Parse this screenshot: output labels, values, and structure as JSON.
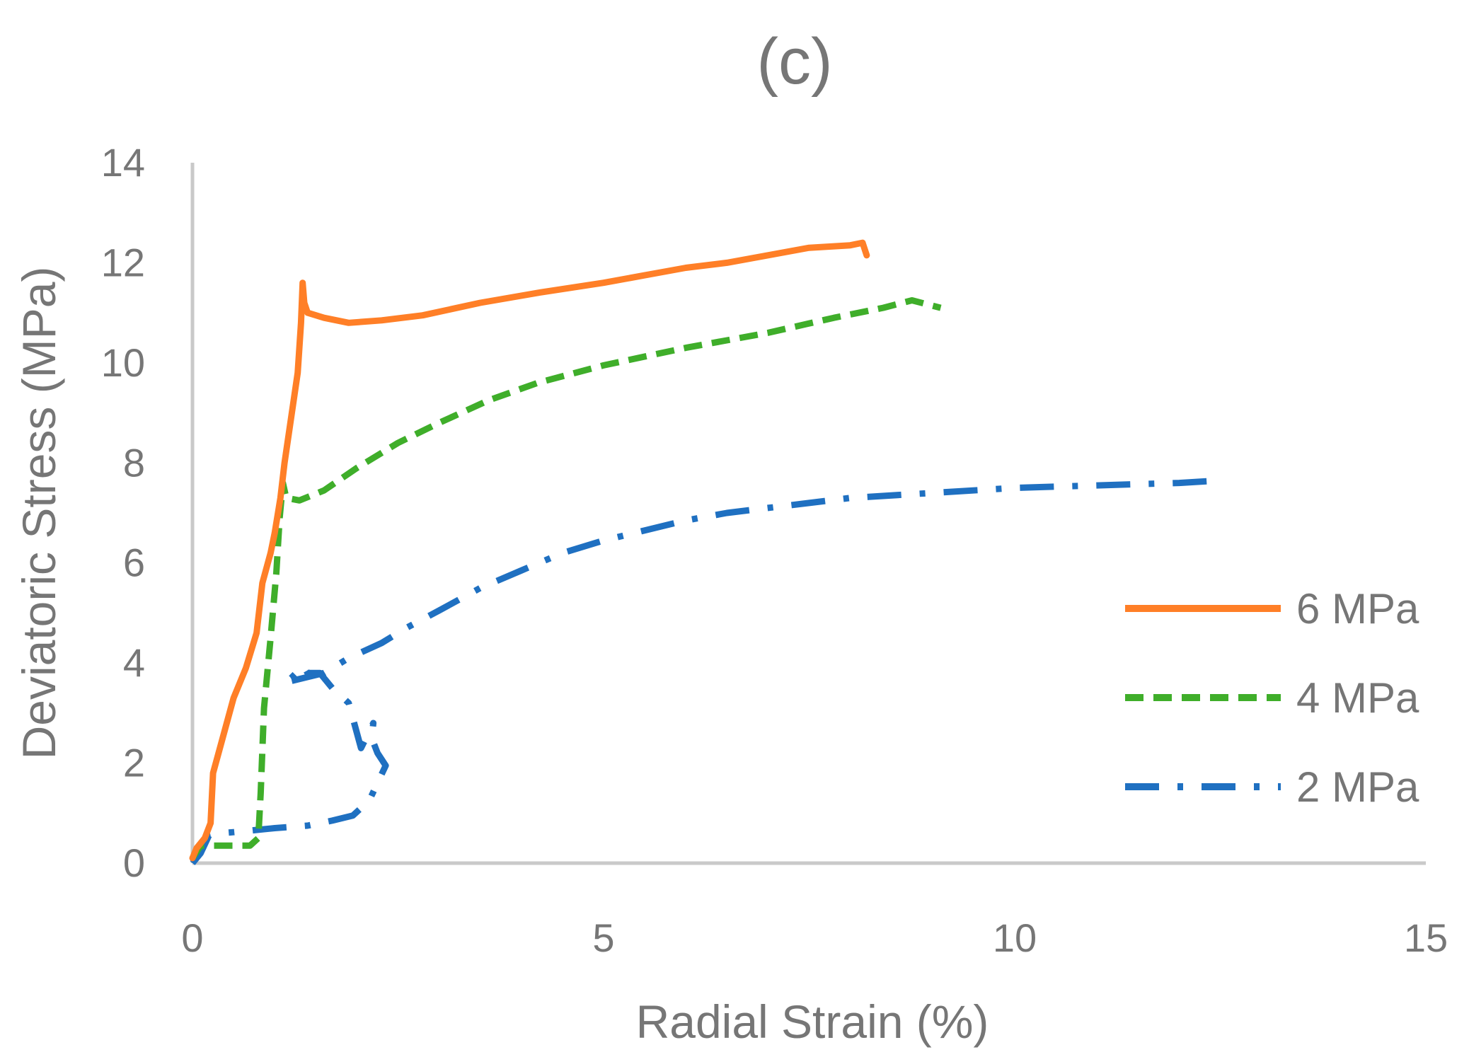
{
  "chart_data": {
    "type": "line",
    "title": "(c)",
    "xlabel": "Radial Strain (%)",
    "ylabel": "Deviatoric Stress (MPa)",
    "xlim": [
      0,
      15
    ],
    "ylim": [
      0,
      14
    ],
    "xticks": [
      "0",
      "5",
      "10",
      "15"
    ],
    "yticks": [
      "0",
      "2",
      "4",
      "6",
      "8",
      "10",
      "12",
      "14"
    ],
    "grid": false,
    "legend_position": "right",
    "series": [
      {
        "name": "6 MPa",
        "color": "#ff7f27",
        "style": "solid",
        "points": [
          [
            0,
            0.1
          ],
          [
            0.05,
            0.3
          ],
          [
            0.15,
            0.5
          ],
          [
            0.22,
            0.8
          ],
          [
            0.25,
            1.8
          ],
          [
            0.35,
            2.4
          ],
          [
            0.5,
            3.3
          ],
          [
            0.65,
            3.9
          ],
          [
            0.78,
            4.6
          ],
          [
            0.85,
            5.6
          ],
          [
            0.95,
            6.2
          ],
          [
            1.0,
            6.6
          ],
          [
            1.07,
            7.3
          ],
          [
            1.12,
            8.0
          ],
          [
            1.2,
            8.9
          ],
          [
            1.28,
            9.8
          ],
          [
            1.32,
            10.8
          ],
          [
            1.34,
            11.6
          ],
          [
            1.36,
            11.2
          ],
          [
            1.4,
            11.0
          ],
          [
            1.6,
            10.9
          ],
          [
            1.9,
            10.8
          ],
          [
            2.3,
            10.85
          ],
          [
            2.8,
            10.95
          ],
          [
            3.5,
            11.2
          ],
          [
            4.2,
            11.4
          ],
          [
            5.0,
            11.6
          ],
          [
            5.5,
            11.75
          ],
          [
            6.0,
            11.9
          ],
          [
            6.5,
            12.0
          ],
          [
            7.0,
            12.15
          ],
          [
            7.5,
            12.3
          ],
          [
            8.0,
            12.35
          ],
          [
            8.15,
            12.4
          ],
          [
            8.2,
            12.15
          ]
        ]
      },
      {
        "name": "4 MPa",
        "color": "#3fae2a",
        "style": "dashed",
        "points": [
          [
            0,
            0.1
          ],
          [
            0.1,
            0.35
          ],
          [
            0.4,
            0.35
          ],
          [
            0.7,
            0.35
          ],
          [
            0.8,
            0.5
          ],
          [
            0.83,
            1.4
          ],
          [
            0.87,
            3.1
          ],
          [
            0.95,
            4.5
          ],
          [
            1.02,
            5.8
          ],
          [
            1.06,
            6.9
          ],
          [
            1.1,
            7.6
          ],
          [
            1.14,
            7.3
          ],
          [
            1.3,
            7.25
          ],
          [
            1.6,
            7.45
          ],
          [
            2.0,
            7.9
          ],
          [
            2.5,
            8.4
          ],
          [
            3.0,
            8.8
          ],
          [
            3.6,
            9.25
          ],
          [
            4.2,
            9.6
          ],
          [
            5.0,
            9.95
          ],
          [
            6.0,
            10.3
          ],
          [
            7.0,
            10.6
          ],
          [
            7.8,
            10.9
          ],
          [
            8.4,
            11.1
          ],
          [
            8.75,
            11.25
          ],
          [
            9.1,
            11.1
          ]
        ]
      },
      {
        "name": "2 MPa",
        "color": "#1f70c1",
        "style": "dashdot",
        "points": [
          [
            0,
            0
          ],
          [
            0.1,
            0.2
          ],
          [
            0.2,
            0.55
          ],
          [
            0.35,
            0.6
          ],
          [
            0.5,
            0.62
          ],
          [
            0.7,
            0.65
          ],
          [
            1.0,
            0.7
          ],
          [
            1.4,
            0.75
          ],
          [
            1.7,
            0.85
          ],
          [
            1.95,
            0.95
          ],
          [
            2.15,
            1.25
          ],
          [
            2.35,
            1.95
          ],
          [
            2.25,
            2.2
          ],
          [
            2.18,
            2.5
          ],
          [
            2.2,
            2.8
          ],
          [
            2.05,
            2.3
          ],
          [
            1.9,
            3.2
          ],
          [
            1.7,
            3.5
          ],
          [
            1.55,
            3.8
          ],
          [
            1.4,
            3.8
          ],
          [
            1.35,
            3.95
          ],
          [
            1.2,
            3.7
          ],
          [
            1.1,
            3.6
          ],
          [
            1.6,
            3.8
          ],
          [
            1.9,
            4.1
          ],
          [
            2.3,
            4.4
          ],
          [
            2.6,
            4.7
          ],
          [
            3.0,
            5.05
          ],
          [
            3.5,
            5.5
          ],
          [
            4.0,
            5.85
          ],
          [
            4.5,
            6.2
          ],
          [
            5.0,
            6.45
          ],
          [
            5.5,
            6.65
          ],
          [
            6.0,
            6.85
          ],
          [
            6.5,
            7.0
          ],
          [
            7.0,
            7.1
          ],
          [
            7.5,
            7.2
          ],
          [
            8.0,
            7.3
          ],
          [
            9.0,
            7.4
          ],
          [
            10.0,
            7.5
          ],
          [
            11.0,
            7.55
          ],
          [
            12.0,
            7.6
          ],
          [
            12.5,
            7.65
          ]
        ]
      }
    ]
  }
}
